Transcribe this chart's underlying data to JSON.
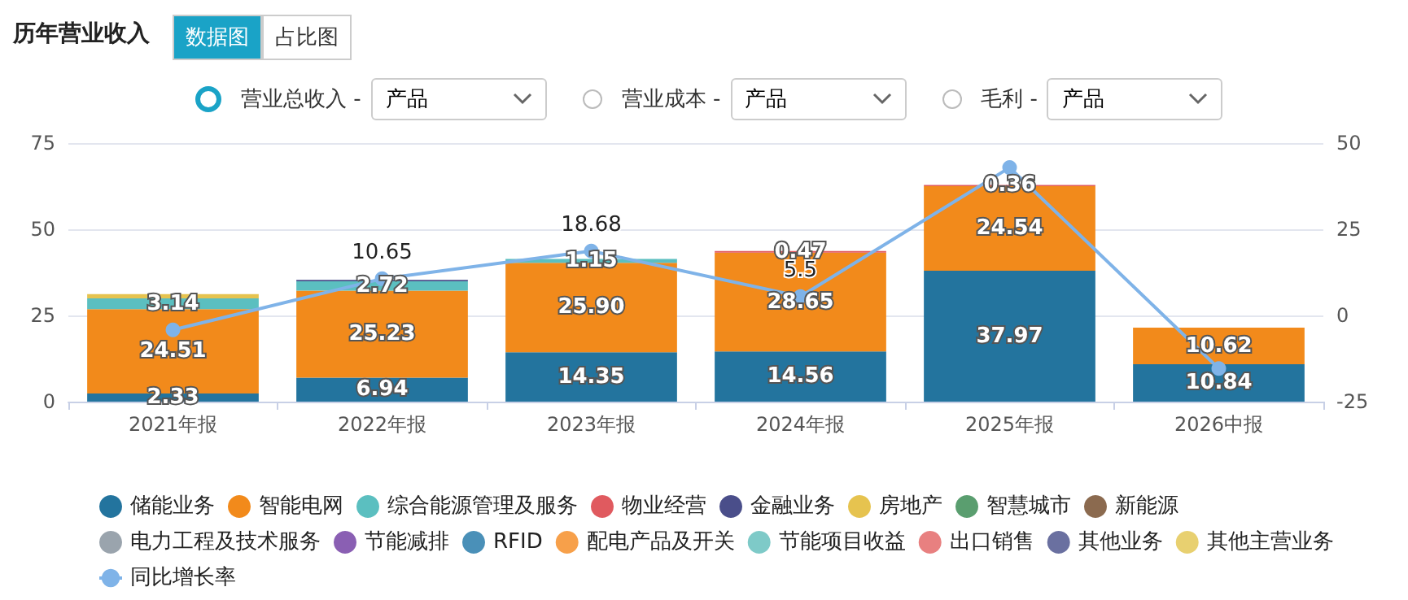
{
  "chart_data": {
    "type": "bar",
    "title": "历年营业收入",
    "annotations": [
      "数据图",
      "占比图",
      "营业总收入 -",
      "产品",
      "营业成本 -",
      "产品",
      "毛利 -",
      "产品"
    ],
    "categories": [
      "2021年报",
      "2022年报",
      "2023年报",
      "2024年报",
      "2025年报",
      "2026中报"
    ],
    "stacked": true,
    "ylim": [
      0,
      75
    ],
    "yticks": [
      0,
      25,
      50,
      75
    ],
    "y2lim": [
      -25,
      50
    ],
    "y2ticks": [
      -25,
      0,
      25,
      50
    ],
    "grid": "y",
    "legend": "bottom",
    "series": [
      {
        "name": "储能业务",
        "color": "#23749e",
        "values": [
          2.33,
          6.94,
          14.35,
          14.56,
          37.97,
          10.84
        ],
        "value_labels": [
          "2.33",
          "6.94",
          "14.35",
          "14.56",
          "37.97",
          "10.84"
        ]
      },
      {
        "name": "智能电网",
        "color": "#f28a1b",
        "values": [
          24.51,
          25.23,
          25.9,
          28.65,
          24.54,
          10.62
        ],
        "value_labels": [
          "24.51",
          "25.23",
          "25.90",
          "28.65",
          "24.54",
          "10.62"
        ]
      },
      {
        "name": "综合能源管理及服务",
        "color": "#5bbfc0",
        "values": [
          3.14,
          2.72,
          1.15,
          null,
          null,
          null
        ],
        "value_labels": [
          "3.14",
          "2.72",
          "1.15",
          null,
          null,
          null
        ]
      },
      {
        "name": "物业经营",
        "color": "#e05a5f",
        "values": [
          null,
          null,
          null,
          0.47,
          0.36,
          null
        ],
        "value_labels": [
          null,
          null,
          null,
          "0.47",
          "0.36",
          null
        ]
      },
      {
        "name": "金融业务",
        "color": "#4a4e8a",
        "values": [
          null,
          0.4,
          null,
          null,
          null,
          null
        ]
      },
      {
        "name": "房地产",
        "color": "#e6c34f",
        "values": [
          1.2,
          null,
          null,
          null,
          null,
          null
        ]
      },
      {
        "name": "智慧城市",
        "color": "#5a9e6f",
        "values": [
          null,
          null,
          null,
          null,
          null,
          null
        ]
      },
      {
        "name": "新能源",
        "color": "#8b6a4f",
        "values": [
          null,
          null,
          null,
          null,
          null,
          null
        ]
      },
      {
        "name": "电力工程及技术服务",
        "color": "#9aa4ad",
        "values": [
          null,
          null,
          null,
          null,
          null,
          null
        ]
      },
      {
        "name": "节能减排",
        "color": "#8a5fb3",
        "values": [
          null,
          null,
          null,
          null,
          null,
          null
        ]
      },
      {
        "name": "RFID",
        "color": "#4a90b8",
        "values": [
          null,
          null,
          null,
          null,
          null,
          null
        ]
      },
      {
        "name": "配电产品及开关",
        "color": "#f7a04a",
        "values": [
          null,
          null,
          null,
          null,
          null,
          null
        ]
      },
      {
        "name": "节能项目收益",
        "color": "#7ecac8",
        "values": [
          null,
          null,
          null,
          null,
          null,
          null
        ]
      },
      {
        "name": "出口销售",
        "color": "#e88080",
        "values": [
          null,
          null,
          null,
          null,
          null,
          null
        ]
      },
      {
        "name": "其他业务",
        "color": "#6a70a0",
        "values": [
          null,
          null,
          null,
          null,
          null,
          null
        ]
      },
      {
        "name": "其他主营业务",
        "color": "#e8d070",
        "values": [
          null,
          null,
          null,
          null,
          null,
          null
        ]
      },
      {
        "name": "同比增长率",
        "type": "line",
        "axis": "y2",
        "marker": "circle",
        "color": "#7fb3e8",
        "values": [
          -4.2,
          10.65,
          18.68,
          5.5,
          42.9,
          -15.4
        ],
        "value_labels": [
          null,
          "10.65",
          "18.68",
          "5.5",
          null,
          null
        ]
      }
    ]
  }
}
